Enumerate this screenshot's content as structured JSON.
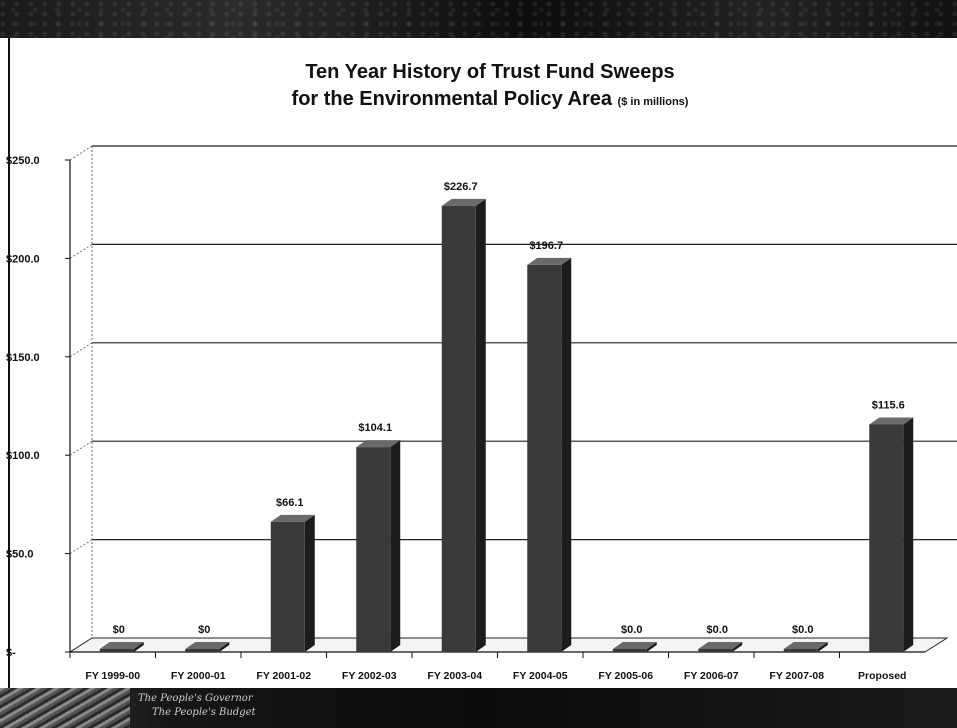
{
  "footer": {
    "line1": "The People's Governor",
    "line2": "The People's Budget"
  },
  "chart_data": {
    "type": "bar",
    "title": "Ten Year History of Trust Fund Sweeps",
    "subtitle": "for the Environmental Policy Area",
    "unit_note": "($ in millions)",
    "categories": [
      "FY 1999-00",
      "FY 2000-01",
      "FY 2001-02",
      "FY 2002-03",
      "FY 2003-04",
      "FY 2004-05",
      "FY 2005-06",
      "FY 2006-07",
      "FY 2007-08",
      "Proposed"
    ],
    "values": [
      0,
      0,
      66.1,
      104.1,
      226.7,
      196.7,
      0,
      0,
      0,
      115.6
    ],
    "data_labels": [
      "$0",
      "$0",
      "$66.1",
      "$104.1",
      "$226.7",
      "$196.7",
      "$0.0",
      "$0.0",
      "$0.0",
      "$115.6"
    ],
    "y_ticks": [
      0,
      50,
      100,
      150,
      200,
      250
    ],
    "y_tick_labels": [
      "$-",
      "$50.0",
      "$100.0",
      "$150.0",
      "$200.0",
      "$250.0"
    ],
    "ylim": [
      0,
      250
    ],
    "grid": true,
    "bar_color": "#3a3a3a"
  }
}
